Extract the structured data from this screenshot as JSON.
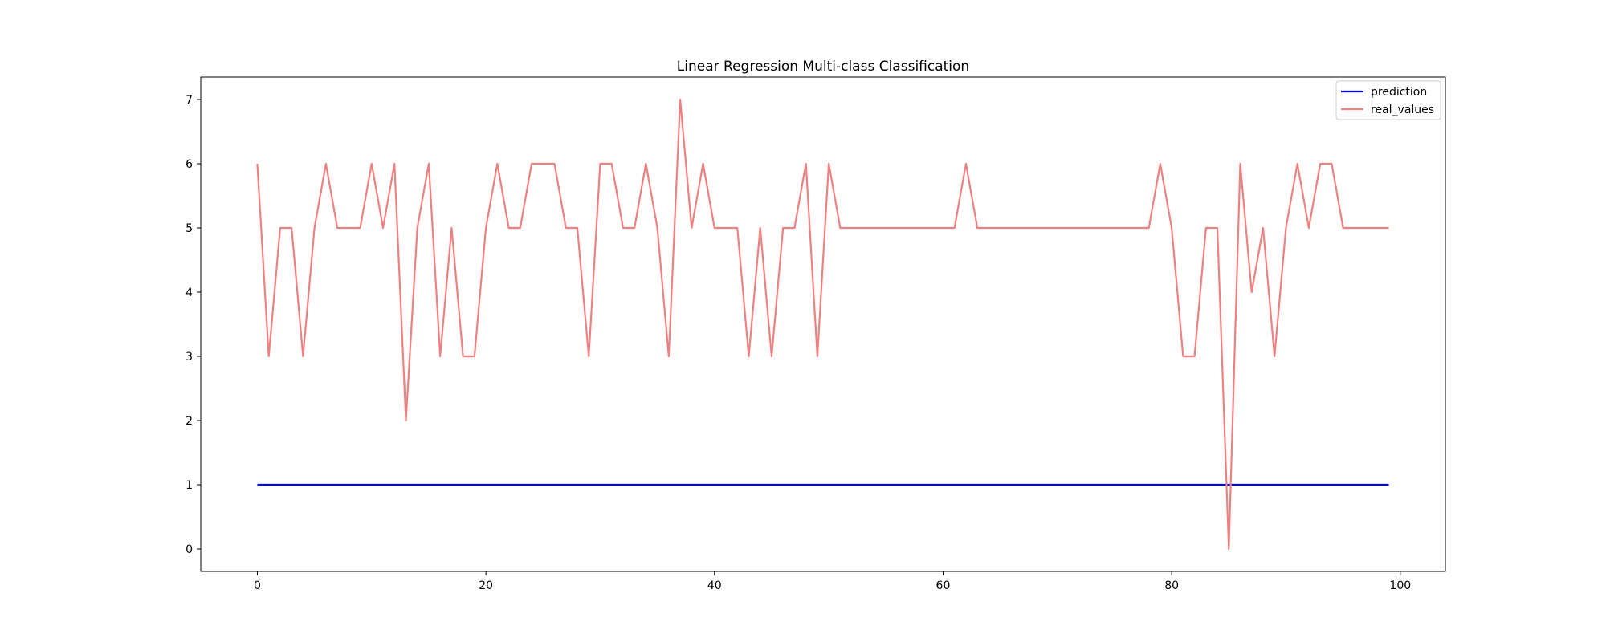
{
  "chart_data": {
    "type": "line",
    "title": "Linear Regression Multi-class Classification",
    "xlabel": "",
    "ylabel": "",
    "xlim": [
      -4.95,
      103.95
    ],
    "ylim": [
      -0.35,
      7.35
    ],
    "x_ticks": [
      0,
      20,
      40,
      60,
      80,
      100
    ],
    "y_ticks": [
      0,
      1,
      2,
      3,
      4,
      5,
      6,
      7
    ],
    "grid": false,
    "legend_position": "upper right",
    "series": [
      {
        "name": "prediction",
        "color": "#0000ff",
        "opacity": 1,
        "x_start": 0,
        "values": [
          1,
          1,
          1,
          1,
          1,
          1,
          1,
          1,
          1,
          1,
          1,
          1,
          1,
          1,
          1,
          1,
          1,
          1,
          1,
          1,
          1,
          1,
          1,
          1,
          1,
          1,
          1,
          1,
          1,
          1,
          1,
          1,
          1,
          1,
          1,
          1,
          1,
          1,
          1,
          1,
          1,
          1,
          1,
          1,
          1,
          1,
          1,
          1,
          1,
          1,
          1,
          1,
          1,
          1,
          1,
          1,
          1,
          1,
          1,
          1,
          1,
          1,
          1,
          1,
          1,
          1,
          1,
          1,
          1,
          1,
          1,
          1,
          1,
          1,
          1,
          1,
          1,
          1,
          1,
          1,
          1,
          1,
          1,
          1,
          1,
          1,
          1,
          1,
          1,
          1,
          1,
          1,
          1,
          1,
          1,
          1,
          1,
          1,
          1,
          1
        ]
      },
      {
        "name": "real_values",
        "color": "#f08080",
        "opacity": 1,
        "x_start": 0,
        "values": [
          6,
          3,
          5,
          5,
          3,
          5,
          6,
          5,
          5,
          5,
          6,
          5,
          6,
          2,
          5,
          6,
          3,
          5,
          3,
          3,
          5,
          6,
          5,
          5,
          6,
          6,
          6,
          5,
          5,
          3,
          6,
          6,
          5,
          5,
          6,
          5,
          3,
          7,
          5,
          6,
          5,
          5,
          5,
          3,
          5,
          3,
          5,
          5,
          6,
          3,
          6,
          5,
          5,
          5,
          5,
          5,
          5,
          5,
          5,
          5,
          5,
          5,
          6,
          5,
          5,
          5,
          5,
          5,
          5,
          5,
          5,
          5,
          5,
          5,
          5,
          5,
          5,
          5,
          5,
          6,
          5,
          3,
          3,
          5,
          5,
          0,
          6,
          4,
          5,
          3,
          5,
          6,
          5,
          6,
          6,
          5,
          5,
          5,
          5,
          5
        ]
      }
    ]
  }
}
